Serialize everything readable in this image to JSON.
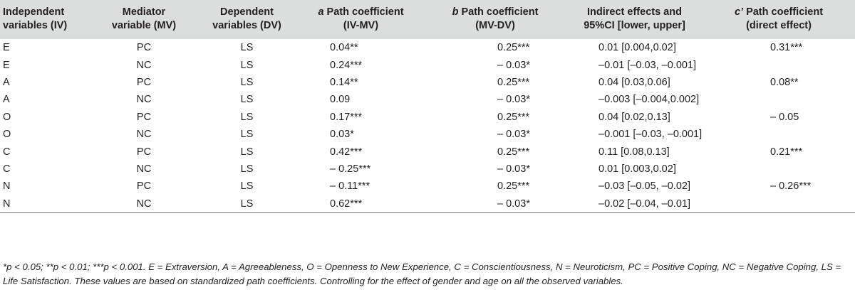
{
  "headers": [
    {
      "l1": "Independent",
      "l2": "variables (IV)"
    },
    {
      "l1": "Mediator",
      "l2": "variable (MV)"
    },
    {
      "l1": "Dependent",
      "l2": "variables (DV)"
    },
    {
      "it": "a",
      "l1": " Path coefficient",
      "l2": "(IV-MV)"
    },
    {
      "it": "b",
      "l1": " Path coefficient",
      "l2": "(MV-DV)"
    },
    {
      "l1": "Indirect effects and",
      "l2": "95%CI [lower, upper]"
    },
    {
      "it": "c’",
      "l1": " Path coefficient",
      "l2": "(direct effect)"
    }
  ],
  "rows": [
    {
      "iv": "E",
      "mv": "PC",
      "dv": "LS",
      "a": "0.04**",
      "b": "0.25***",
      "ind": "0.01 [0.004,0.02]",
      "c": "0.31***"
    },
    {
      "iv": "E",
      "mv": "NC",
      "dv": "LS",
      "a": "0.24***",
      "b": "– 0.03*",
      "ind": "–0.01 [–0.03, –0.001]",
      "c": ""
    },
    {
      "iv": "A",
      "mv": "PC",
      "dv": "LS",
      "a": "0.14**",
      "b": "0.25***",
      "ind": "0.04 [0.03,0.06]",
      "c": "0.08**"
    },
    {
      "iv": "A",
      "mv": "NC",
      "dv": "LS",
      "a": "0.09",
      "b": "– 0.03*",
      "ind": "–0.003 [–0.004,0.002]",
      "c": ""
    },
    {
      "iv": "O",
      "mv": "PC",
      "dv": "LS",
      "a": "0.17***",
      "b": "0.25***",
      "ind": "0.04 [0.02,0.13]",
      "c": "– 0.05"
    },
    {
      "iv": "O",
      "mv": "NC",
      "dv": "LS",
      "a": "0.03*",
      "b": "– 0.03*",
      "ind": "–0.001 [–0.03, –0.001]",
      "c": ""
    },
    {
      "iv": "C",
      "mv": "PC",
      "dv": "LS",
      "a": "0.42***",
      "b": "0.25***",
      "ind": "0.11 [0.08,0.13]",
      "c": "0.21***"
    },
    {
      "iv": "C",
      "mv": "NC",
      "dv": "LS",
      "a": "– 0.25***",
      "b": "– 0.03*",
      "ind": "0.01 [0.003,0.02]",
      "c": ""
    },
    {
      "iv": "N",
      "mv": "PC",
      "dv": "LS",
      "a": "– 0.11***",
      "b": "0.25***",
      "ind": "–0.03 [–0.05, –0.02]",
      "c": "– 0.26***"
    },
    {
      "iv": "N",
      "mv": "NC",
      "dv": "LS",
      "a": "0.62***",
      "b": "– 0.03*",
      "ind": "–0.02 [–0.04, –0.01]",
      "c": ""
    }
  ],
  "footnote": "*p < 0.05; **p < 0.01; ***p < 0.001. E = Extraversion, A = Agreeableness, O = Openness to New Experience, C = Conscientiousness, N = Neuroticism, PC = Positive Coping, NC = Negative Coping, LS = Life Satisfaction. These values are based on standardized path coefficients. Controlling for the effect of gender and age on all the observed variables."
}
